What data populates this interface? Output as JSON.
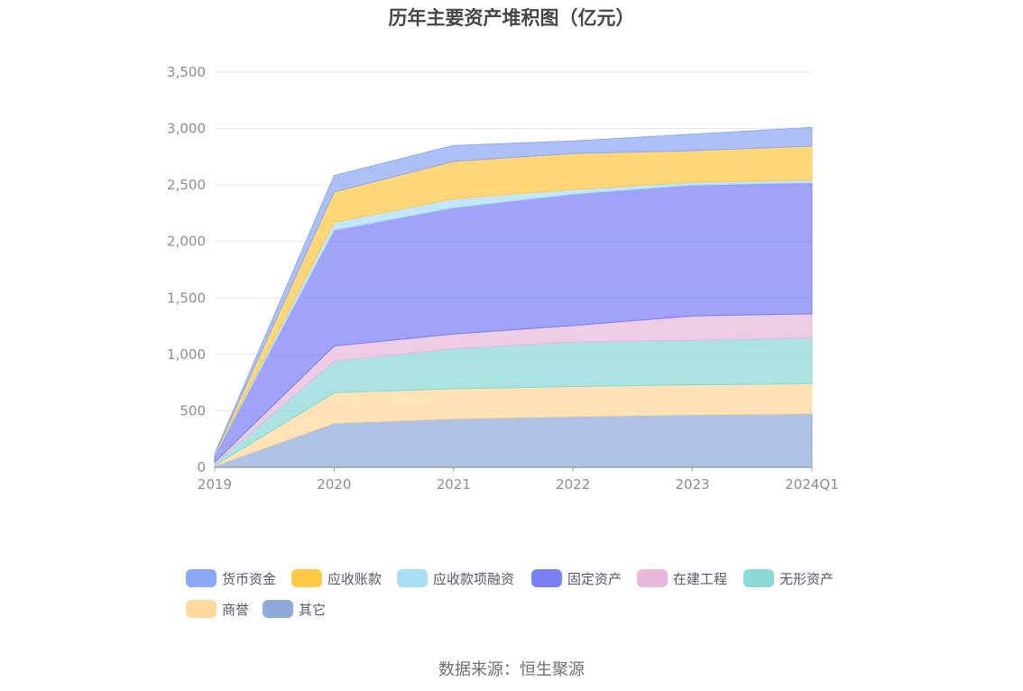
{
  "title": "历年主要资产堆积图（亿元）",
  "source": "数据来源：恒生聚源",
  "chart_data": {
    "type": "area",
    "stacked": true,
    "title": "历年主要资产堆积图（亿元）",
    "x": [
      "2019",
      "2020",
      "2021",
      "2022",
      "2023",
      "2024Q1"
    ],
    "ylim": [
      0,
      3500
    ],
    "yticks": [
      0,
      500,
      1000,
      1500,
      2000,
      2500,
      3000,
      3500
    ],
    "ytick_labels": [
      "0",
      "500",
      "1,000",
      "1,500",
      "2,000",
      "2,500",
      "3,000",
      "3,500"
    ],
    "grid": true,
    "legend_position": "bottom",
    "series": [
      {
        "name": "其它",
        "color": "#8eaadb",
        "values": [
          10,
          390,
          430,
          450,
          465,
          475
        ]
      },
      {
        "name": "商誉",
        "color": "#ffd89b",
        "values": [
          5,
          270,
          265,
          265,
          265,
          265
        ]
      },
      {
        "name": "无形资产",
        "color": "#8ad8d8",
        "values": [
          15,
          280,
          355,
          395,
          395,
          405
        ]
      },
      {
        "name": "在建工程",
        "color": "#e8b9da",
        "values": [
          15,
          135,
          130,
          145,
          215,
          215
        ]
      },
      {
        "name": "固定资产",
        "color": "#7b7ff4",
        "values": [
          60,
          1025,
          1120,
          1165,
          1160,
          1160
        ]
      },
      {
        "name": "应收款项融资",
        "color": "#a9def6",
        "values": [
          5,
          70,
          80,
          40,
          25,
          25
        ]
      },
      {
        "name": "应收账款",
        "color": "#ffc845",
        "values": [
          5,
          270,
          330,
          320,
          280,
          300
        ]
      },
      {
        "name": "货币资金",
        "color": "#8da9f5",
        "values": [
          5,
          145,
          140,
          110,
          145,
          165
        ]
      }
    ]
  },
  "legend": {
    "items": [
      {
        "name": "货币资金",
        "color": "#8da9f5"
      },
      {
        "name": "应收账款",
        "color": "#ffc845"
      },
      {
        "name": "应收款项融资",
        "color": "#a9def6"
      },
      {
        "name": "固定资产",
        "color": "#7b7ff4"
      },
      {
        "name": "在建工程",
        "color": "#e8b9da"
      },
      {
        "name": "无形资产",
        "color": "#8ad8d8"
      },
      {
        "name": "商誉",
        "color": "#ffd89b"
      },
      {
        "name": "其它",
        "color": "#8eaadb"
      }
    ]
  }
}
